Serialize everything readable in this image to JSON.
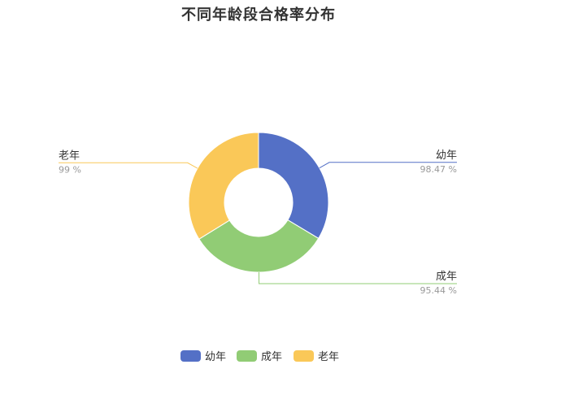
{
  "chart_data": {
    "type": "pie",
    "title": "不同年龄段合格率分布",
    "categories": [
      "幼年",
      "成年",
      "老年"
    ],
    "values": [
      98.47,
      95.44,
      99
    ],
    "value_labels": [
      "98.47 %",
      "95.44 %",
      "99 %"
    ],
    "colors": [
      "#5470c6",
      "#91cc75",
      "#fac858"
    ],
    "donut": true,
    "legend_position": "bottom"
  }
}
